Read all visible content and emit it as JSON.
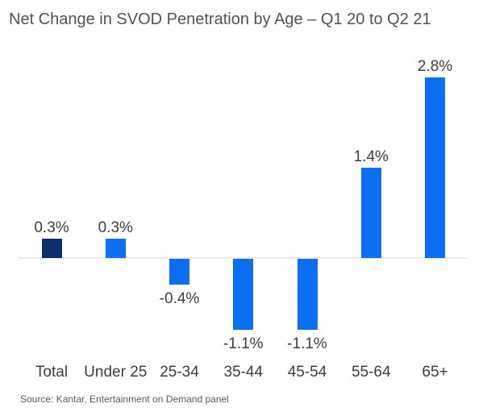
{
  "chart_data": {
    "type": "bar",
    "title": "Net Change in SVOD Penetration by Age – Q1 20 to Q2 21",
    "categories": [
      "Total",
      "Under 25",
      "25-34",
      "35-44",
      "45-54",
      "55-64",
      "65+"
    ],
    "values": [
      0.3,
      0.3,
      -0.4,
      -1.1,
      -1.1,
      1.4,
      2.8
    ],
    "labels": [
      "0.3%",
      "0.3%",
      "-0.4%",
      "-1.1%",
      "-1.1%",
      "1.4%",
      "2.8%"
    ],
    "bar_colors": [
      "#0d2f6e",
      "#0a6ff1",
      "#0a6ff1",
      "#0a6ff1",
      "#0a6ff1",
      "#0a6ff1",
      "#0a6ff1"
    ],
    "ylim": [
      -1.5,
      3.0
    ],
    "xlabel": "",
    "ylabel": "",
    "grid": false,
    "legend": false,
    "axis_line_color": "#e8e8e8"
  },
  "colors": {
    "navy": "#0d2f6e",
    "blue": "#0a6ff1",
    "title_text": "#525254",
    "label_text": "#3d3d3d",
    "source_text": "#5a5a5a"
  },
  "source": "Source: Kantar, Entertainment on Demand panel"
}
